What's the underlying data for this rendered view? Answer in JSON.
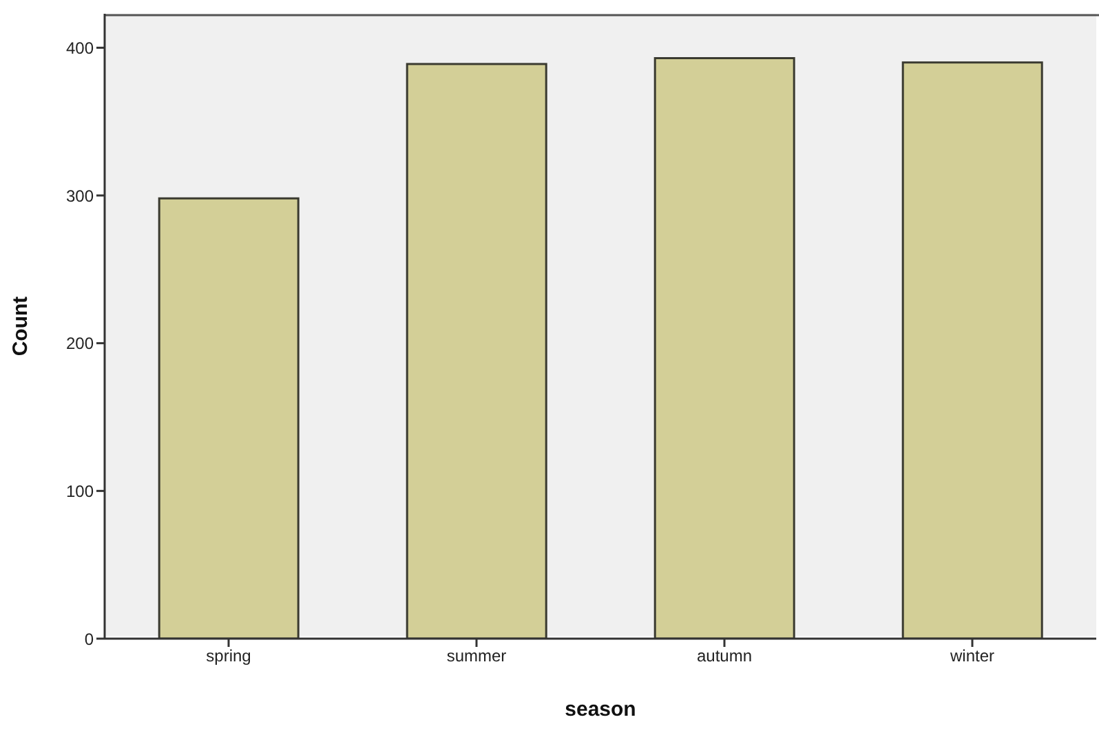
{
  "chart_data": {
    "type": "bar",
    "xlabel": "season",
    "ylabel": "Count",
    "categories": [
      "spring",
      "summer",
      "autumn",
      "winter"
    ],
    "values": [
      298,
      389,
      393,
      390
    ],
    "color": "#d3cf97",
    "ylim": [
      0,
      423
    ],
    "yticks": [
      0,
      100,
      200,
      300,
      400
    ],
    "grid": false
  }
}
